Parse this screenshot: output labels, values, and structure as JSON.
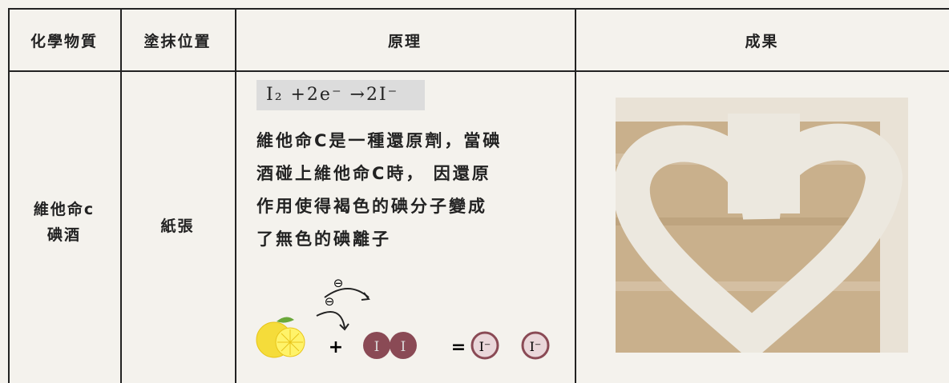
{
  "table": {
    "header": [
      "化學物質",
      "塗抹位置",
      "原理",
      "成果"
    ],
    "rows": [
      [
        [
          "維他命c",
          "碘酒"
        ],
        "紙張",
        {
          "equation": "I₂ +2e⁻ →2I⁻",
          "lines": [
            "維他命C是一種還原劑，當碘",
            "酒碰上維他命C時， 因還原",
            "作用使得褐色的碘分子變成",
            "了無色的碘離子"
          ],
          "diagram": {
            "electrons": [
              "⊖",
              "⊖"
            ],
            "plus": "+",
            "molecule": [
              "I",
              "I"
            ],
            "equals": "=",
            "ions": [
              "I⁻",
              "I⁻"
            ]
          }
        }
      ]
    ]
  }
}
